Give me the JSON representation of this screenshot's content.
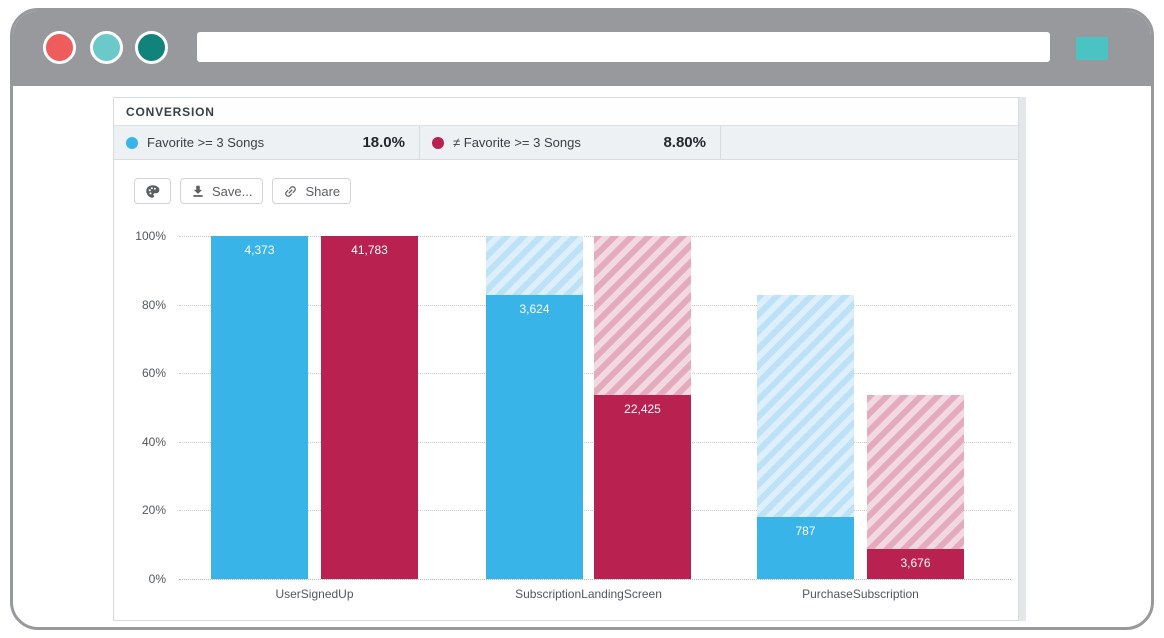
{
  "browser": {
    "traffic_lights": [
      "#ee5c5c",
      "#6bc9c9",
      "#12837a"
    ],
    "frame_color": "#97999c",
    "accent_color": "#4cc3c3",
    "url_value": ""
  },
  "panel": {
    "title": "CONVERSION",
    "legend": [
      {
        "label": "Favorite >= 3 Songs",
        "value": "18.0%",
        "color": "#39b4e8"
      },
      {
        "label": "≠ Favorite >= 3 Songs",
        "value": "8.80%",
        "color": "#b92150"
      }
    ],
    "toolbar": {
      "buttons": [
        {
          "icon": "palette-icon",
          "label": ""
        },
        {
          "icon": "download-icon",
          "label": "Save..."
        },
        {
          "icon": "link-icon",
          "label": "Share"
        }
      ]
    }
  },
  "chart_data": {
    "type": "bar",
    "title": "",
    "categories": [
      "UserSignedUp",
      "SubscriptionLandingScreen",
      "PurchaseSubscription"
    ],
    "series": [
      {
        "name": "Favorite >= 3 Songs",
        "color": "#39b4e8",
        "values": [
          4373,
          3624,
          787
        ],
        "labels": [
          "4,373",
          "3,624",
          "787"
        ],
        "pct_of_first": [
          100,
          82.9,
          18.0
        ]
      },
      {
        "name": "≠ Favorite >= 3 Songs",
        "color": "#b92150",
        "values": [
          41783,
          22425,
          3676
        ],
        "labels": [
          "41,783",
          "22,425",
          "3,676"
        ],
        "pct_of_first": [
          100,
          53.7,
          8.8
        ]
      }
    ],
    "xlabel": "",
    "ylabel": "",
    "ytick_labels": [
      "0%",
      "20%",
      "40%",
      "60%",
      "80%",
      "100%"
    ],
    "ylim": [
      0,
      100
    ],
    "grid": "dotted horizontal",
    "note": "hatched segments show previous step height (drop-off)",
    "hatch_colors": {
      "blue_stripe": "#bde1f6",
      "blue_bg": "#ddeffb",
      "pink_stripe": "#e4aabe",
      "pink_bg": "#f2d8e0"
    }
  }
}
